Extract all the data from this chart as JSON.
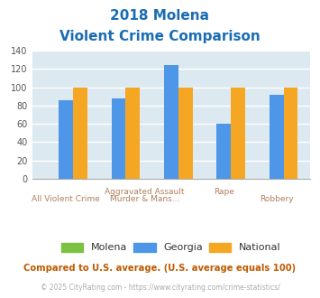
{
  "title_line1": "2018 Molena",
  "title_line2": "Violent Crime Comparison",
  "categories": [
    "All Violent Crime",
    "Aggravated Assault",
    "Murder & Mans...",
    "Rape",
    "Robbery"
  ],
  "molena_values": [
    0,
    0,
    0,
    0,
    0
  ],
  "georgia_values": [
    86,
    88,
    124,
    60,
    92
  ],
  "national_values": [
    100,
    100,
    100,
    100,
    100
  ],
  "molena_color": "#7dc142",
  "georgia_color": "#4d96e8",
  "national_color": "#f5a623",
  "bg_color": "#dce9f0",
  "ylim": [
    0,
    140
  ],
  "yticks": [
    0,
    20,
    40,
    60,
    80,
    100,
    120,
    140
  ],
  "title_color": "#1a6db5",
  "legend_labels": [
    "Molena",
    "Georgia",
    "National"
  ],
  "footnote1": "Compared to U.S. average. (U.S. average equals 100)",
  "footnote2": "© 2025 CityRating.com - https://www.cityrating.com/crime-statistics/",
  "footnote1_color": "#c05a00",
  "footnote2_color": "#aaaaaa",
  "xlabel_color": "#b08060",
  "grid_color": "#c8d8e0"
}
